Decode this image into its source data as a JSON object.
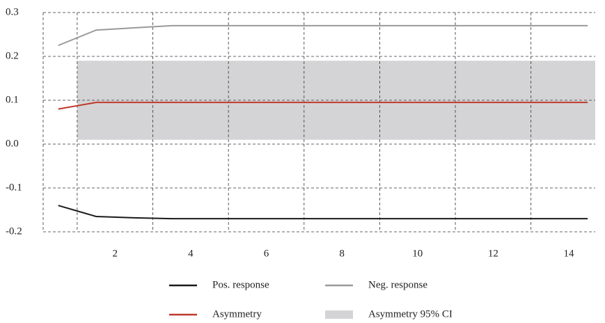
{
  "chart_data": {
    "type": "line",
    "x": [
      0.5,
      1.5,
      2.5,
      3.5,
      4.5,
      5.5,
      6.5,
      7.5,
      8.5,
      9.5,
      10.5,
      11.5,
      12.5,
      13.5,
      14.5
    ],
    "series": [
      {
        "name": "Pos. response",
        "color": "#1a1a1a",
        "values": [
          -0.14,
          -0.165,
          -0.168,
          -0.17,
          -0.17,
          -0.17,
          -0.17,
          -0.17,
          -0.17,
          -0.17,
          -0.17,
          -0.17,
          -0.17,
          -0.17,
          -0.17
        ]
      },
      {
        "name": "Neg. response",
        "color": "#9a9a9a",
        "values": [
          0.225,
          0.26,
          0.265,
          0.27,
          0.27,
          0.27,
          0.27,
          0.27,
          0.27,
          0.27,
          0.27,
          0.27,
          0.27,
          0.27,
          0.27
        ]
      },
      {
        "name": "Asymmetry",
        "color": "#c0392b",
        "values": [
          0.08,
          0.095,
          0.095,
          0.095,
          0.095,
          0.095,
          0.095,
          0.095,
          0.095,
          0.095,
          0.095,
          0.095,
          0.095,
          0.095,
          0.095
        ]
      }
    ],
    "band": {
      "name": "Asymmetry 95% CI",
      "color": "#d4d4d6",
      "x": [
        1,
        14.7
      ],
      "lower": [
        0.01,
        0.01
      ],
      "upper": [
        0.19,
        0.19
      ]
    },
    "xlim": [
      0.1,
      14.7
    ],
    "ylim": [
      -0.2,
      0.3
    ],
    "xticks": [
      2,
      4,
      6,
      8,
      10,
      12,
      14
    ],
    "x_grid_lines": [
      1,
      3,
      5,
      7,
      9,
      11,
      13
    ],
    "yticks": [
      {
        "value": 0.3,
        "label": "0.3"
      },
      {
        "value": 0.2,
        "label": "0.2"
      },
      {
        "value": 0.1,
        "label": "0.1"
      },
      {
        "value": 0,
        "label": "0.0"
      },
      {
        "value": -0.1,
        "label": "-0.1"
      },
      {
        "value": -0.2,
        "label": "-0.2"
      }
    ],
    "grid": true,
    "legend": "bottom"
  }
}
